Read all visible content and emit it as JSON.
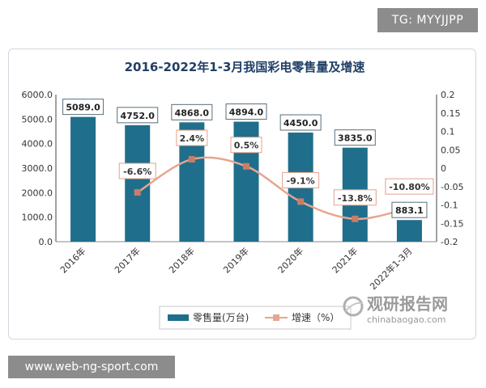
{
  "watermark_top": "TG: MYYJJPP",
  "watermark_bottom": "www.web-ng-sport.com",
  "logo": {
    "name": "观研报告网",
    "url": "chinabaogao.com"
  },
  "chart_data": {
    "type": "bar",
    "title": "2016-2022年1-3月我国彩电零售量及增速",
    "categories": [
      "2016年",
      "2017年",
      "2018年",
      "2019年",
      "2020年",
      "2021年",
      "2022年1-3月"
    ],
    "series": [
      {
        "name": "零售量(万台)",
        "type": "bar",
        "axis": "left",
        "values": [
          5089.0,
          4752.0,
          4868.0,
          4894.0,
          4450.0,
          3835.0,
          883.1
        ],
        "labels": [
          "5089.0",
          "4752.0",
          "4868.0",
          "4894.0",
          "4450.0",
          "3835.0",
          "883.1"
        ],
        "color": "#1f6e8c"
      },
      {
        "name": "增速（%）",
        "type": "line",
        "axis": "right",
        "values": [
          null,
          -0.066,
          0.024,
          0.005,
          -0.091,
          -0.138,
          -0.108
        ],
        "labels": [
          "",
          "-6.6%",
          "2.4%",
          "0.5%",
          "-9.1%",
          "-13.8%",
          "-10.80%"
        ],
        "color": "#e8a58f"
      }
    ],
    "y_left": {
      "min": 0,
      "max": 6000,
      "ticks": [
        "0.0",
        "1000.0",
        "2000.0",
        "3000.0",
        "4000.0",
        "5000.0",
        "6000.0"
      ]
    },
    "y_right": {
      "min": -0.2,
      "max": 0.2,
      "ticks": [
        "-0.2",
        "-0.15",
        "-0.1",
        "-0.05",
        "0",
        "0.05",
        "0.1",
        "0.15",
        "0.2"
      ]
    },
    "legend_position": "bottom",
    "grid": false
  }
}
